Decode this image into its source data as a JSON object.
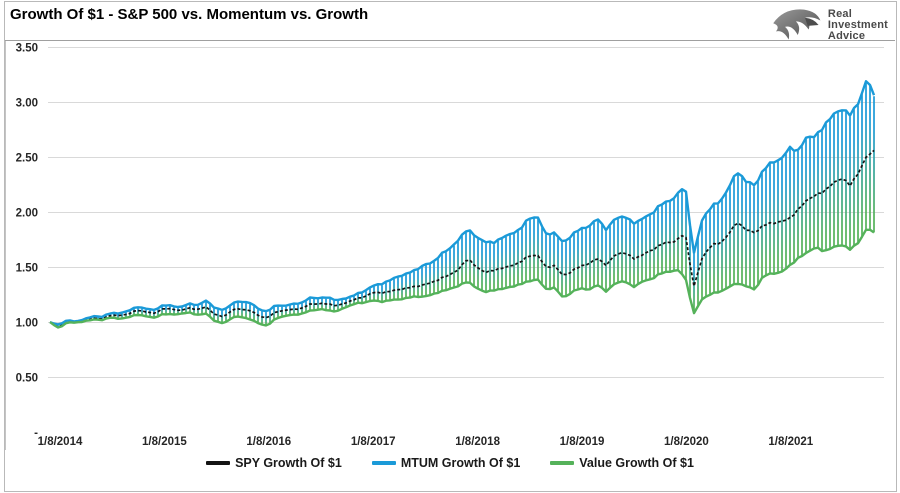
{
  "header": {
    "title": "Growth Of $1 - S&P 500 vs. Momentum vs. Growth",
    "logo": {
      "icon": "eagle-icon",
      "lines": [
        "Real",
        "Investment",
        "Advice"
      ]
    }
  },
  "chart_data": {
    "type": "line",
    "title": "Growth Of $1 - S&P 500 vs. Momentum vs. Growth",
    "xlabel": "",
    "ylabel": "",
    "x_unit": "monthly values starting 1/8/2014",
    "x_tick_labels": [
      "1/8/2014",
      "1/8/2015",
      "1/8/2016",
      "1/8/2017",
      "1/8/2018",
      "1/8/2019",
      "1/8/2020",
      "1/8/2021"
    ],
    "y_ticks": [
      3.5,
      3.0,
      2.5,
      2.0,
      1.5,
      1.0,
      0.5,
      0.0
    ],
    "y_tick_labels": [
      "3.50",
      "3.00",
      "2.50",
      "2.00",
      "1.50",
      "1.00",
      "0.50",
      "-"
    ],
    "ylim": [
      0,
      3.5
    ],
    "grid": true,
    "legend_position": "bottom",
    "band": {
      "between": [
        "MTUM Growth Of $1",
        "Value Growth Of $1"
      ],
      "style": "vertical-stripes-blue-to-green"
    },
    "series": [
      {
        "name": "SPY Growth Of $1",
        "color": "#141414",
        "style": "dashed",
        "values": [
          1.0,
          0.97,
          1.01,
          1.01,
          1.02,
          1.04,
          1.03,
          1.07,
          1.06,
          1.08,
          1.11,
          1.1,
          1.08,
          1.13,
          1.12,
          1.11,
          1.13,
          1.12,
          1.14,
          1.07,
          1.05,
          1.12,
          1.12,
          1.11,
          1.06,
          1.04,
          1.1,
          1.11,
          1.12,
          1.13,
          1.17,
          1.17,
          1.17,
          1.15,
          1.18,
          1.21,
          1.23,
          1.27,
          1.27,
          1.28,
          1.3,
          1.31,
          1.33,
          1.34,
          1.37,
          1.4,
          1.44,
          1.48,
          1.59,
          1.5,
          1.46,
          1.47,
          1.5,
          1.51,
          1.55,
          1.6,
          1.62,
          1.5,
          1.52,
          1.42,
          1.47,
          1.51,
          1.54,
          1.58,
          1.52,
          1.62,
          1.64,
          1.58,
          1.61,
          1.65,
          1.7,
          1.73,
          1.74,
          1.82,
          1.32,
          1.6,
          1.7,
          1.72,
          1.8,
          1.92,
          1.84,
          1.82,
          1.88,
          1.91,
          1.91,
          1.95,
          2.02,
          2.12,
          2.15,
          2.2,
          2.26,
          2.32,
          2.24,
          2.38,
          2.52,
          2.58
        ]
      },
      {
        "name": "MTUM Growth Of $1",
        "color": "#1b9ad8",
        "style": "solid",
        "values": [
          1.0,
          0.98,
          1.02,
          1.01,
          1.03,
          1.06,
          1.05,
          1.09,
          1.08,
          1.11,
          1.14,
          1.13,
          1.11,
          1.16,
          1.15,
          1.14,
          1.17,
          1.16,
          1.2,
          1.13,
          1.11,
          1.18,
          1.19,
          1.18,
          1.12,
          1.1,
          1.16,
          1.15,
          1.17,
          1.18,
          1.23,
          1.22,
          1.23,
          1.2,
          1.22,
          1.25,
          1.28,
          1.33,
          1.35,
          1.38,
          1.42,
          1.44,
          1.48,
          1.52,
          1.55,
          1.62,
          1.68,
          1.75,
          1.86,
          1.77,
          1.74,
          1.72,
          1.78,
          1.8,
          1.85,
          1.94,
          1.97,
          1.8,
          1.82,
          1.72,
          1.8,
          1.85,
          1.88,
          1.94,
          1.84,
          1.95,
          1.97,
          1.9,
          1.94,
          1.98,
          2.06,
          2.1,
          2.15,
          2.25,
          1.62,
          1.95,
          2.05,
          2.1,
          2.22,
          2.38,
          2.28,
          2.25,
          2.38,
          2.47,
          2.47,
          2.6,
          2.55,
          2.7,
          2.68,
          2.8,
          2.88,
          2.95,
          2.88,
          3.02,
          3.22,
          3.0
        ]
      },
      {
        "name": "Value Growth Of $1",
        "color": "#55b25a",
        "style": "solid",
        "values": [
          1.0,
          0.95,
          1.0,
          1.0,
          1.01,
          1.03,
          1.02,
          1.05,
          1.03,
          1.05,
          1.07,
          1.06,
          1.04,
          1.08,
          1.07,
          1.08,
          1.09,
          1.07,
          1.08,
          1.01,
          0.99,
          1.05,
          1.05,
          1.03,
          0.99,
          0.97,
          1.04,
          1.06,
          1.07,
          1.08,
          1.11,
          1.12,
          1.11,
          1.1,
          1.14,
          1.17,
          1.18,
          1.2,
          1.19,
          1.2,
          1.21,
          1.22,
          1.24,
          1.23,
          1.26,
          1.28,
          1.31,
          1.33,
          1.38,
          1.31,
          1.28,
          1.29,
          1.31,
          1.32,
          1.35,
          1.37,
          1.4,
          1.3,
          1.32,
          1.22,
          1.28,
          1.31,
          1.3,
          1.34,
          1.28,
          1.36,
          1.38,
          1.32,
          1.37,
          1.39,
          1.44,
          1.46,
          1.48,
          1.42,
          1.08,
          1.22,
          1.26,
          1.28,
          1.32,
          1.36,
          1.33,
          1.3,
          1.42,
          1.45,
          1.45,
          1.52,
          1.58,
          1.64,
          1.68,
          1.65,
          1.68,
          1.71,
          1.66,
          1.74,
          1.86,
          1.8
        ]
      }
    ]
  },
  "legend": {
    "items": [
      {
        "label": "SPY Growth Of $1",
        "color": "#141414"
      },
      {
        "label": "MTUM Growth Of $1",
        "color": "#1b9ad8"
      },
      {
        "label": "Value Growth Of $1",
        "color": "#55b25a"
      }
    ]
  },
  "colors": {
    "spy": "#141414",
    "mtum": "#1b9ad8",
    "value": "#55b25a",
    "gridline": "#d9d9d9",
    "border": "#b9b9b9",
    "axis_text": "#262626"
  }
}
